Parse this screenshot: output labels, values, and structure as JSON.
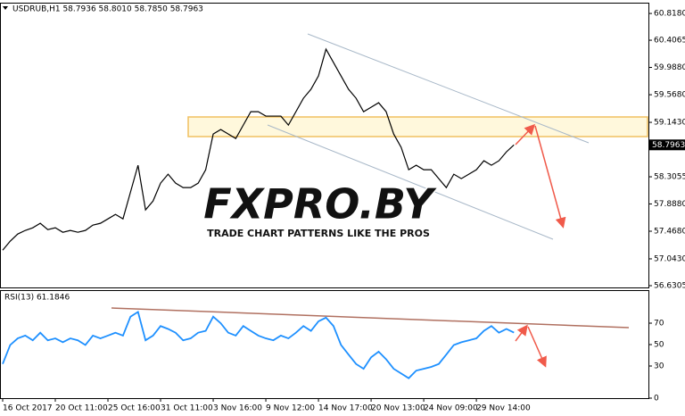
{
  "chart_data": [
    {
      "type": "line",
      "title": "USDRUB,H1 58.7936 58.8010 58.7850 58.7963",
      "color": "#000000",
      "categories": [
        "16 Oct 2017",
        null,
        null,
        null,
        null,
        null,
        null,
        "20 Oct 11:00",
        null,
        null,
        null,
        null,
        null,
        null,
        "25 Oct 16:00",
        null,
        null,
        null,
        null,
        null,
        null,
        "31 Oct 11:00",
        null,
        null,
        null,
        null,
        null,
        null,
        "3 Nov 16:00",
        null,
        null,
        null,
        null,
        null,
        null,
        "9 Nov 12:00",
        null,
        null,
        null,
        null,
        null,
        null,
        "14 Nov 17:00",
        null,
        null,
        null,
        null,
        null,
        null,
        "20 Nov 13:00",
        null,
        null,
        null,
        null,
        null,
        null,
        "24 Nov 09:00",
        null,
        null,
        null,
        null,
        null,
        null,
        "29 Nov 14:00",
        null,
        null,
        null,
        null,
        null
      ],
      "values": [
        57.177,
        57.315,
        57.425,
        57.48,
        57.521,
        57.59,
        57.493,
        57.521,
        57.452,
        57.48,
        57.452,
        57.48,
        57.562,
        57.59,
        57.658,
        57.727,
        57.658,
        58.071,
        58.483,
        57.796,
        57.933,
        58.208,
        58.345,
        58.208,
        58.139,
        58.139,
        58.208,
        58.414,
        58.964,
        59.033,
        58.964,
        58.895,
        59.101,
        59.307,
        59.307,
        59.239,
        59.239,
        59.239,
        59.101,
        59.307,
        59.514,
        59.651,
        59.857,
        60.269,
        60.063,
        59.857,
        59.651,
        59.514,
        59.307,
        59.376,
        59.445,
        59.307,
        58.964,
        58.758,
        58.414,
        58.483,
        58.414,
        58.414,
        58.277,
        58.139,
        58.345,
        58.277,
        58.345,
        58.414,
        58.552,
        58.483,
        58.552,
        58.689,
        58.7963
      ],
      "ylim": [
        56.603,
        60.984
      ],
      "yticks": [
        {
          "value": 60.818,
          "label": "60.8180"
        },
        {
          "value": 60.4065,
          "label": "60.4065"
        },
        {
          "value": 59.988,
          "label": "59.9880"
        },
        {
          "value": 59.568,
          "label": "59.5680"
        },
        {
          "value": 59.143,
          "label": "59.1430"
        },
        58.3055,
        {
          "value": 57.888,
          "label": "57.8880"
        },
        {
          "value": 57.468,
          "label": "57.4680"
        },
        {
          "value": 57.043,
          "label": "57.0430"
        },
        56.6305
      ],
      "last_price": 58.7963
    },
    {
      "type": "line",
      "title": "RSI(13) 61.1846",
      "color": "#1e90ff",
      "values": [
        31.9,
        49.6,
        55.8,
        58.4,
        54,
        61.1,
        54,
        55.8,
        52.2,
        55.8,
        54,
        49.6,
        58.4,
        55.8,
        58.4,
        61.1,
        58.4,
        76.1,
        80.5,
        54,
        58.4,
        67.3,
        64.6,
        61.1,
        54,
        55.8,
        61.1,
        62.8,
        76.1,
        69.9,
        61.1,
        58.4,
        67.3,
        62.8,
        58.4,
        55.8,
        54,
        58.4,
        55.8,
        61.1,
        67.3,
        62.8,
        71.7,
        75.2,
        67.3,
        49.6,
        40.7,
        31.9,
        27.4,
        38.1,
        43.4,
        36.3,
        27.4,
        23,
        18.6,
        25.7,
        27.4,
        29.2,
        31.9,
        40.7,
        49.6,
        52.2,
        54,
        55.8,
        62.8,
        67.3,
        61.1,
        64.6,
        61.1846
      ],
      "ylim": [
        0,
        100
      ],
      "yticks": [
        70,
        50,
        30,
        0
      ]
    }
  ],
  "watermark": {
    "logo": "FXPRO.BY",
    "tagline": "TRADE CHART PATTERNS LIKE THE PROS"
  }
}
